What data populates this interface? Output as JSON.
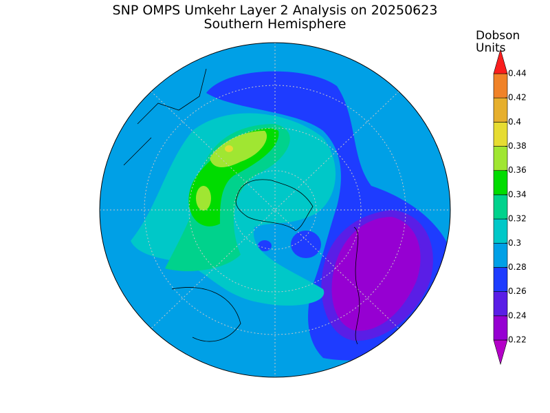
{
  "header": {
    "title": "SNP OMPS Umkehr Layer 2 Analysis on 20250623",
    "subtitle": "Southern Hemisphere"
  },
  "colorbar": {
    "label": [
      "Dobson",
      "Units"
    ],
    "ticks": [
      0.22,
      0.24,
      0.26,
      0.28,
      0.3,
      0.32,
      0.34,
      0.36,
      0.38,
      0.4,
      0.42,
      0.44
    ],
    "colors": [
      "#b400c8",
      "#9600d2",
      "#5a1ee6",
      "#1e3cff",
      "#00a0e6",
      "#00c8c8",
      "#00d28c",
      "#00dc00",
      "#a0e632",
      "#e6dc32",
      "#e6af2d",
      "#f08228",
      "#fa1e1e",
      "#c80096"
    ]
  }
}
